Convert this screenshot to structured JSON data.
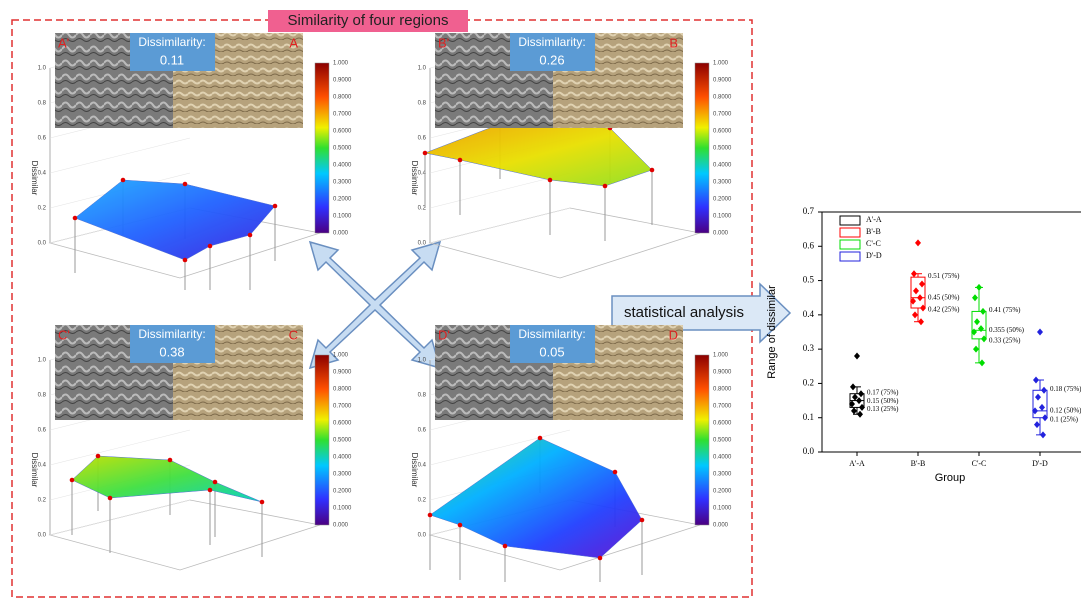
{
  "title": "Similarity of four regions",
  "arrow_label": "statistical analysis",
  "dissimilarity_label": "Dissimilarity:",
  "z_axis_label": "Dissimilar",
  "z_ticks": [
    "0.0",
    "0.2",
    "0.4",
    "0.6",
    "0.8",
    "1.0"
  ],
  "colorbar_ticks": [
    "0.000",
    "0.1000",
    "0.2000",
    "0.3000",
    "0.4000",
    "0.5000",
    "0.6000",
    "0.7000",
    "0.8000",
    "0.9000",
    "1.000"
  ],
  "panels": [
    {
      "label_left": "A'",
      "label_right": "A",
      "dissimilarity": "0.11"
    },
    {
      "label_left": "B'",
      "label_right": "B",
      "dissimilarity": "0.26"
    },
    {
      "label_left": "C'",
      "label_right": "C",
      "dissimilarity": "0.38"
    },
    {
      "label_left": "D'",
      "label_right": "D",
      "dissimilarity": "0.05"
    }
  ],
  "chart_data": {
    "type": "box",
    "x_label": "Group",
    "y_label": "Range of dissimilar",
    "categories": [
      "A'-A",
      "B'-B",
      "C'-C",
      "D'-D"
    ],
    "ylim": [
      0,
      0.7
    ],
    "yticks": [
      {
        "value": 0,
        "label": "0.0"
      },
      0.1,
      0.2,
      0.3,
      0.4,
      0.5,
      0.6,
      0.7
    ],
    "series": [
      {
        "name": "A'-A",
        "color": "#000000",
        "q1": 0.13,
        "median": 0.15,
        "q3": 0.17,
        "q1_label": "0.13 (25%)",
        "median_label": "0.15 (50%)",
        "q3_label": "0.17 (75%)",
        "whiskers": [
          0.11,
          0.19
        ],
        "points": [
          0.28,
          0.19,
          0.17,
          0.16,
          0.15,
          0.14,
          0.13,
          0.12,
          0.11
        ]
      },
      {
        "name": "B'-B",
        "color": "#ff0000",
        "q1": 0.42,
        "median": 0.45,
        "q3": 0.51,
        "q1_label": "0.42 (25%)",
        "median_label": "0.45 (50%)",
        "q3_label": "0.51 (75%)",
        "whiskers": [
          0.38,
          0.52
        ],
        "points": [
          0.61,
          0.52,
          0.49,
          0.47,
          0.45,
          0.44,
          0.42,
          0.4,
          0.38
        ]
      },
      {
        "name": "C'-C",
        "color": "#00dd00",
        "q1": 0.33,
        "median": 0.355,
        "q3": 0.41,
        "q1_label": "0.33 (25%)",
        "median_label": "0.355 (50%)",
        "q3_label": "0.41 (75%)",
        "whiskers": [
          0.26,
          0.48
        ],
        "points": [
          0.48,
          0.45,
          0.41,
          0.38,
          0.36,
          0.35,
          0.33,
          0.3,
          0.26
        ]
      },
      {
        "name": "D'-D",
        "color": "#2222dd",
        "q1": 0.1,
        "median": 0.12,
        "q3": 0.18,
        "q1_label": "0.1 (25%)",
        "median_label": "0.12 (50%)",
        "q3_label": "0.18 (75%)",
        "whiskers": [
          0.05,
          0.21
        ],
        "points": [
          0.35,
          0.21,
          0.18,
          0.16,
          0.13,
          0.12,
          0.1,
          0.08,
          0.05
        ]
      }
    ]
  }
}
